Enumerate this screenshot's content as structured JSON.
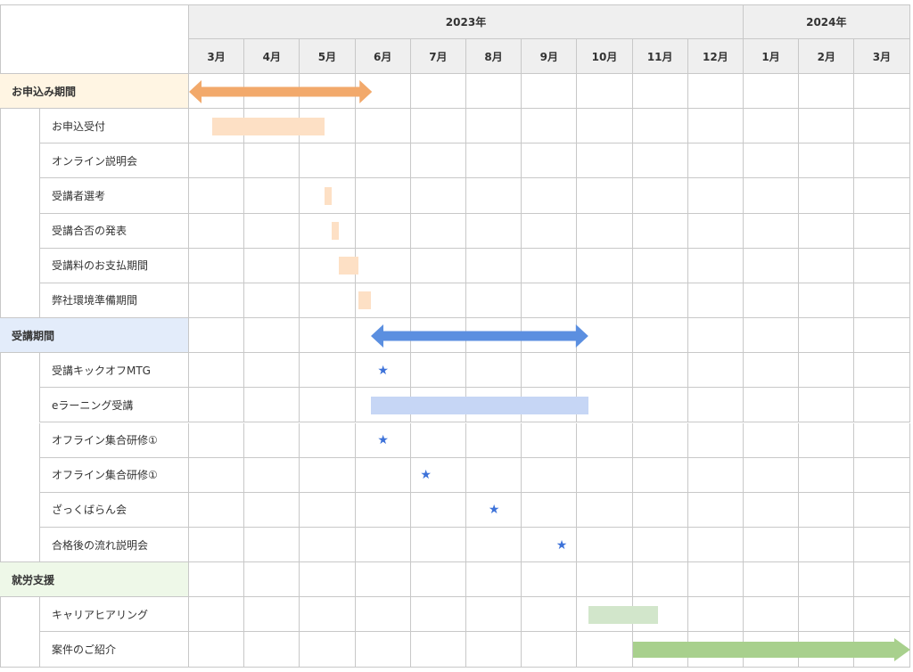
{
  "header": {
    "years": [
      {
        "label": "2023年",
        "start": 0,
        "span": 10
      },
      {
        "label": "2024年",
        "start": 10,
        "span": 3
      }
    ],
    "months": [
      "3月",
      "4月",
      "5月",
      "6月",
      "7月",
      "8月",
      "9月",
      "10月",
      "11月",
      "12月",
      "1月",
      "2月",
      "3月"
    ]
  },
  "colors": {
    "grid": "#c8c8c8",
    "header_bg": "#efefef",
    "orange_section_bg": "#fff5e3",
    "orange_bar": "#fde0c5",
    "orange_arrow": "#f2a96b",
    "blue_section_bg": "#e3ecfa",
    "blue_bar": "#c6d6f5",
    "blue_arrow": "#5b8fe0",
    "star": "#3d72d9",
    "green_section_bg": "#eef8e8",
    "green_bar": "#d2e6cb",
    "green_arrow": "#a8d08d"
  },
  "rows": [
    {
      "type": "section",
      "label": "お申込み期間",
      "theme": "orange",
      "marker": {
        "kind": "double-arrow",
        "start": 0.0,
        "end": 3.3
      }
    },
    {
      "type": "task",
      "label": "お申込受付",
      "marker": {
        "kind": "bar",
        "color": "orange_bar",
        "start": 0.42,
        "end": 2.45
      }
    },
    {
      "type": "task",
      "label": "オンライン説明会"
    },
    {
      "type": "task",
      "label": "受講者選考",
      "marker": {
        "kind": "bar",
        "color": "orange_bar",
        "start": 2.45,
        "end": 2.58
      }
    },
    {
      "type": "task",
      "label": "受講合否の発表",
      "marker": {
        "kind": "bar",
        "color": "orange_bar",
        "start": 2.58,
        "end": 2.7
      }
    },
    {
      "type": "task",
      "label": "受講料のお支払期間",
      "marker": {
        "kind": "bar",
        "color": "orange_bar",
        "start": 2.7,
        "end": 3.05
      }
    },
    {
      "type": "task",
      "label": "弊社環境準備期間",
      "marker": {
        "kind": "bar",
        "color": "orange_bar",
        "start": 3.05,
        "end": 3.28
      }
    },
    {
      "type": "section",
      "label": "受講期間",
      "theme": "blue",
      "marker": {
        "kind": "double-arrow",
        "start": 3.28,
        "end": 7.2
      }
    },
    {
      "type": "task",
      "label": "受講キックオフMTG",
      "marker": {
        "kind": "star",
        "at": 3.5
      }
    },
    {
      "type": "task",
      "label": "eラーニング受講",
      "marker": {
        "kind": "bar",
        "color": "blue_bar",
        "start": 3.28,
        "end": 7.2
      }
    },
    {
      "type": "task",
      "label": "オフライン集合研修①",
      "marker": {
        "kind": "star",
        "at": 3.5
      }
    },
    {
      "type": "task",
      "label": "オフライン集合研修①",
      "marker": {
        "kind": "star",
        "at": 4.27
      }
    },
    {
      "type": "task",
      "label": "ざっくばらん会",
      "marker": {
        "kind": "star",
        "at": 5.5
      }
    },
    {
      "type": "task",
      "label": "合格後の流れ説明会",
      "marker": {
        "kind": "star",
        "at": 6.72
      }
    },
    {
      "type": "section",
      "label": "就労支援",
      "theme": "green"
    },
    {
      "type": "task",
      "label": "キャリアヒアリング",
      "marker": {
        "kind": "bar",
        "color": "green_bar",
        "start": 7.2,
        "end": 8.45
      }
    },
    {
      "type": "task",
      "label": "案件のご紹介",
      "marker": {
        "kind": "right-arrow",
        "color": "green_arrow",
        "start": 8.0,
        "end": 13.0
      }
    }
  ]
}
